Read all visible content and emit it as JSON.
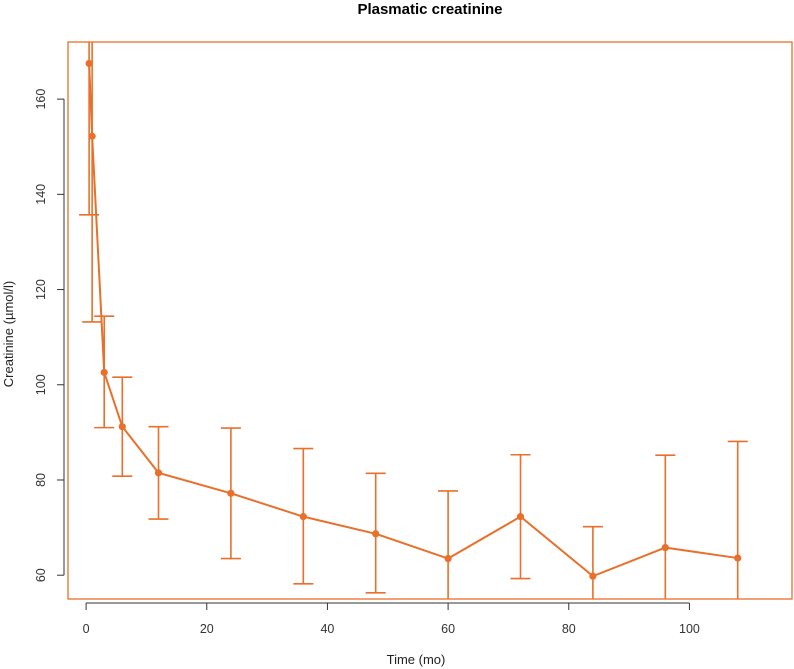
{
  "chart_data": {
    "type": "line",
    "title": "Plasmatic creatinine",
    "xlabel": "Time (mo)",
    "ylabel": "Creatinine (µmol/l)",
    "xlim": [
      -3,
      117
    ],
    "ylim": [
      55,
      172
    ],
    "x_ticks": [
      0,
      20,
      40,
      60,
      80,
      100
    ],
    "y_ticks": [
      60,
      80,
      100,
      120,
      140,
      160
    ],
    "grid": false,
    "color": "#E8702A",
    "series": [
      {
        "x": [
          0.5,
          1,
          3,
          6,
          12,
          24,
          36,
          48,
          60,
          72,
          84,
          96,
          108
        ],
        "y": [
          167.5,
          152.2,
          102.6,
          91.2,
          81.5,
          77.2,
          72.3,
          68.7,
          63.5,
          72.3,
          59.8,
          65.8,
          63.6
        ],
        "err_low": [
          135.7,
          113.2,
          91.0,
          80.8,
          71.8,
          63.5,
          58.2,
          56.3,
          50.0,
          59.3,
          49.0,
          47.5,
          50.0
        ],
        "err_high": [
          199.3,
          191.2,
          114.4,
          101.6,
          91.2,
          90.9,
          86.6,
          81.4,
          77.7,
          85.3,
          70.2,
          85.2,
          88.1
        ]
      }
    ]
  }
}
